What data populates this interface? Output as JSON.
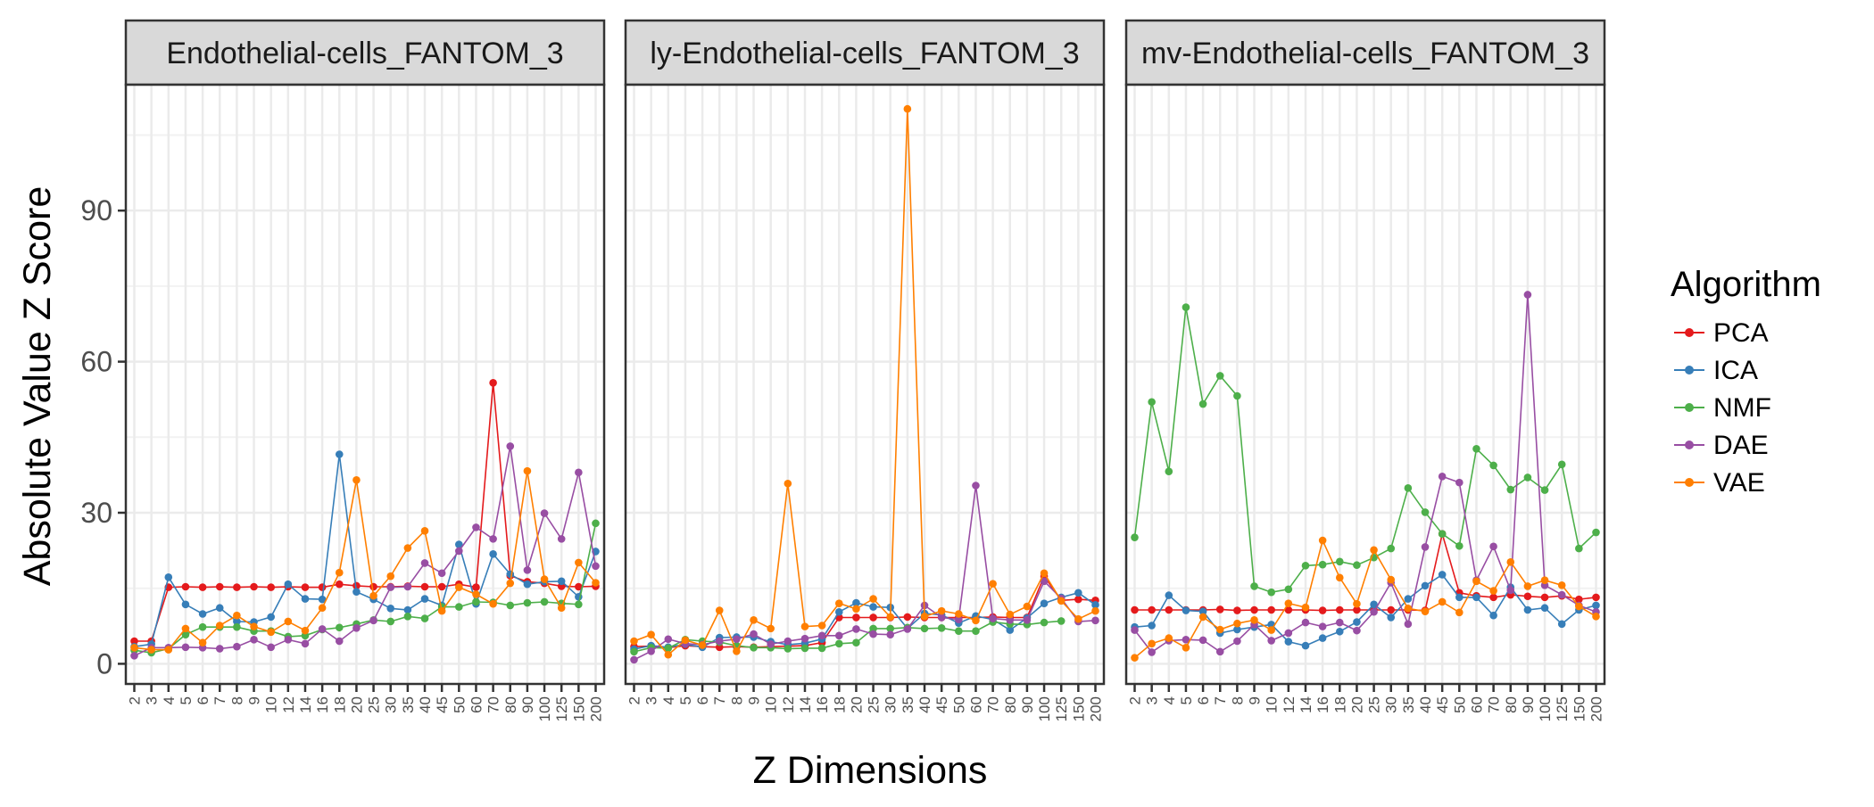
{
  "chart_data": {
    "type": "line",
    "ylabel": "Absolute Value Z Score",
    "xlabel": "Z Dimensions",
    "x": [
      "2",
      "3",
      "4",
      "5",
      "6",
      "7",
      "8",
      "9",
      "10",
      "12",
      "14",
      "16",
      "18",
      "20",
      "25",
      "30",
      "35",
      "40",
      "45",
      "50",
      "60",
      "70",
      "80",
      "90",
      "100",
      "125",
      "150",
      "200"
    ],
    "y_ticks": [
      0,
      30,
      60,
      90
    ],
    "ylim": [
      -4,
      115
    ],
    "grid": true,
    "legend": {
      "title": "Algorithm",
      "position": "right",
      "entries": [
        "PCA",
        "ICA",
        "NMF",
        "DAE",
        "VAE"
      ]
    },
    "colors": {
      "PCA": "#E41A1C",
      "ICA": "#377EB8",
      "NMF": "#4DAF4A",
      "DAE": "#984EA3",
      "VAE": "#FF7F00"
    },
    "panels": [
      {
        "strip": "Endothelial-cells_FANTOM_3",
        "series": [
          {
            "name": "PCA",
            "values": [
              4.5,
              4.5,
              15.2,
              15.3,
              15.2,
              15.3,
              15.2,
              15.3,
              15.2,
              15.3,
              15.2,
              15.2,
              15.8,
              15.5,
              15.3,
              15.3,
              15.4,
              15.3,
              15.3,
              15.8,
              15.2,
              55.8,
              17.5,
              16.3,
              16.0,
              15.4,
              15.3,
              15.4
            ]
          },
          {
            "name": "ICA",
            "values": [
              3.4,
              3.9,
              17.2,
              11.8,
              9.9,
              11.1,
              8.4,
              8.3,
              9.3,
              15.8,
              12.9,
              12.8,
              41.6,
              14.3,
              12.8,
              11.0,
              10.7,
              12.9,
              11.6,
              23.7,
              11.9,
              21.8,
              17.8,
              15.8,
              16.3,
              16.4,
              13.3,
              22.3
            ]
          },
          {
            "name": "NMF",
            "values": [
              2.7,
              2.2,
              3.0,
              5.8,
              7.3,
              7.3,
              7.3,
              6.5,
              6.5,
              5.4,
              5.6,
              6.8,
              7.2,
              7.9,
              8.7,
              8.4,
              9.4,
              9.0,
              11.3,
              11.3,
              12.3,
              12.2,
              11.6,
              12.1,
              12.3,
              12.0,
              11.8,
              27.9
            ]
          },
          {
            "name": "DAE",
            "values": [
              1.6,
              3.2,
              3.2,
              3.3,
              3.2,
              3.0,
              3.4,
              4.8,
              3.3,
              4.8,
              4.0,
              6.9,
              4.5,
              7.1,
              8.6,
              15.2,
              15.3,
              20.0,
              18.0,
              22.4,
              27.1,
              24.8,
              43.2,
              18.6,
              29.9,
              24.8,
              38.0,
              19.4
            ]
          },
          {
            "name": "VAE",
            "values": [
              3.2,
              2.8,
              2.8,
              7.0,
              4.2,
              7.6,
              9.6,
              7.4,
              6.3,
              8.4,
              6.6,
              11.1,
              18.1,
              36.5,
              13.5,
              17.4,
              23.0,
              26.4,
              10.5,
              15.2,
              13.8,
              11.9,
              16.0,
              38.3,
              16.8,
              11.1,
              20.1,
              16.1
            ]
          }
        ]
      },
      {
        "strip": "ly-Endothelial-cells_FANTOM_3",
        "series": [
          {
            "name": "PCA",
            "values": [
              3.4,
              3.5,
              3.2,
              3.6,
              3.4,
              3.3,
              3.4,
              3.3,
              3.4,
              3.5,
              3.6,
              4.2,
              9.2,
              9.2,
              9.2,
              9.2,
              9.3,
              9.2,
              9.2,
              9.2,
              9.2,
              9.3,
              9.2,
              9.2,
              17.4,
              12.6,
              12.8,
              12.6
            ]
          },
          {
            "name": "ICA",
            "values": [
              2.9,
              3.6,
              3.3,
              3.9,
              3.3,
              5.2,
              5.3,
              5.3,
              4.4,
              3.8,
              4.1,
              4.9,
              10.3,
              12.1,
              11.3,
              11.2,
              7.0,
              10.0,
              9.7,
              8.1,
              9.5,
              8.8,
              6.7,
              9.1,
              12.0,
              13.2,
              14.1,
              11.7
            ]
          },
          {
            "name": "NMF",
            "values": [
              2.4,
              3.2,
              3.1,
              4.8,
              4.5,
              4.3,
              3.6,
              3.2,
              3.2,
              3.0,
              3.1,
              3.1,
              4.0,
              4.2,
              7.0,
              7.0,
              7.2,
              7.0,
              7.1,
              6.5,
              6.5,
              8.3,
              7.9,
              7.8,
              8.2,
              8.5,
              null,
              null
            ]
          },
          {
            "name": "DAE",
            "values": [
              0.8,
              2.5,
              4.9,
              4.0,
              3.8,
              4.5,
              4.9,
              5.9,
              3.9,
              4.5,
              5.0,
              5.6,
              5.6,
              6.9,
              5.9,
              5.8,
              6.9,
              11.6,
              9.2,
              8.8,
              35.4,
              9.0,
              8.7,
              8.7,
              16.4,
              13.0,
              8.4,
              8.6
            ]
          },
          {
            "name": "VAE",
            "values": [
              4.5,
              5.8,
              1.8,
              4.7,
              3.7,
              10.6,
              2.5,
              8.7,
              7.0,
              35.8,
              7.4,
              7.6,
              12.0,
              10.9,
              12.9,
              9.3,
              110.2,
              9.4,
              10.5,
              9.9,
              8.6,
              15.9,
              9.8,
              11.4,
              18.0,
              12.5,
              8.9,
              10.5
            ]
          }
        ]
      },
      {
        "strip": "mv-Endothelial-cells_FANTOM_3",
        "series": [
          {
            "name": "PCA",
            "values": [
              10.7,
              10.7,
              10.7,
              10.7,
              10.7,
              10.8,
              10.6,
              10.7,
              10.7,
              10.7,
              10.7,
              10.6,
              10.7,
              10.7,
              10.7,
              10.7,
              10.7,
              10.6,
              25.8,
              14.1,
              13.5,
              13.2,
              13.7,
              13.4,
              13.2,
              13.5,
              12.8,
              13.2
            ]
          },
          {
            "name": "ICA",
            "values": [
              7.3,
              7.6,
              13.6,
              10.6,
              10.4,
              6.1,
              6.8,
              7.3,
              7.8,
              4.4,
              3.6,
              5.1,
              6.4,
              8.3,
              11.8,
              9.2,
              12.9,
              15.5,
              17.7,
              13.2,
              13.2,
              9.6,
              15.2,
              10.7,
              11.1,
              7.9,
              10.7,
              11.6
            ]
          },
          {
            "name": "NMF",
            "values": [
              25.1,
              52.0,
              38.2,
              70.8,
              51.6,
              57.2,
              53.2,
              15.4,
              14.2,
              14.8,
              19.5,
              19.7,
              20.3,
              19.6,
              21.1,
              22.9,
              34.9,
              30.1,
              25.8,
              23.4,
              42.7,
              39.4,
              34.6,
              37.0,
              34.5,
              39.6,
              22.9,
              26.1
            ]
          },
          {
            "name": "DAE",
            "values": [
              6.7,
              2.3,
              4.6,
              4.8,
              4.7,
              2.4,
              4.5,
              7.8,
              4.6,
              6.1,
              8.2,
              7.4,
              8.2,
              6.6,
              10.3,
              16.1,
              7.9,
              23.2,
              37.2,
              36.0,
              16.6,
              23.3,
              14.6,
              73.3,
              15.6,
              13.7,
              11.6,
              10.3
            ]
          },
          {
            "name": "VAE",
            "values": [
              1.2,
              4.0,
              5.1,
              3.2,
              9.3,
              6.8,
              8.0,
              8.7,
              6.7,
              12.0,
              11.2,
              24.5,
              17.1,
              11.9,
              22.6,
              16.7,
              11.0,
              10.4,
              12.3,
              10.2,
              16.4,
              14.5,
              20.2,
              15.4,
              16.6,
              15.6,
              11.4,
              9.4
            ]
          }
        ]
      }
    ]
  }
}
